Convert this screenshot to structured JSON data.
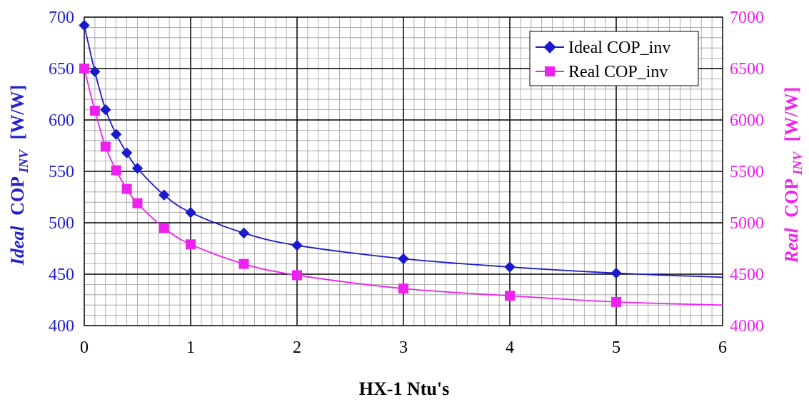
{
  "colors": {
    "ideal": "#1a1acc",
    "real": "#ee22ee",
    "ideal_axis_text": "#2222cc",
    "real_axis_text": "#ee22ee"
  },
  "chart_data": {
    "type": "line",
    "xlabel": "HX-1 Ntu's",
    "ylabel_left": {
      "italic_part": "Ideal",
      "main": "COP",
      "subscript": "INV",
      "unit": "[W/W]"
    },
    "ylabel_right": {
      "italic_part": "Real",
      "main": "COP",
      "subscript": "INV",
      "unit": "[W/W]"
    },
    "xlim": [
      0,
      6
    ],
    "ylim_left": [
      400,
      700
    ],
    "ylim_right": [
      4000,
      7000
    ],
    "x_ticks": [
      "0",
      "1",
      "2",
      "3",
      "4",
      "5",
      "6"
    ],
    "y_left_ticks": [
      "400",
      "450",
      "500",
      "550",
      "600",
      "650",
      "700"
    ],
    "y_right_ticks": [
      "4000",
      "4500",
      "5000",
      "5500",
      "6000",
      "6500",
      "7000"
    ],
    "grid": true,
    "legend_position": "top-right",
    "series": [
      {
        "name": "Ideal COP_inv",
        "axis": "left",
        "marker": "diamond",
        "x": [
          0,
          0.1,
          0.2,
          0.3,
          0.4,
          0.5,
          0.75,
          1,
          1.5,
          2,
          3,
          4,
          5
        ],
        "y": [
          692,
          647,
          610,
          586,
          568,
          553,
          527,
          510,
          490,
          478,
          465,
          457,
          451
        ]
      },
      {
        "name": "Real COP_inv",
        "axis": "right",
        "marker": "square",
        "x": [
          0,
          0.1,
          0.2,
          0.3,
          0.4,
          0.5,
          0.75,
          1,
          1.5,
          2,
          3,
          4,
          5
        ],
        "y": [
          6500,
          6090,
          5740,
          5510,
          5330,
          5190,
          4950,
          4790,
          4600,
          4490,
          4360,
          4290,
          4230
        ]
      }
    ],
    "curves": [
      {
        "axis": "left",
        "x": [
          0,
          0.1,
          0.2,
          0.3,
          0.4,
          0.5,
          0.75,
          1,
          1.5,
          2,
          3,
          4,
          5,
          6
        ],
        "y": [
          692,
          647,
          610,
          586,
          568,
          553,
          527,
          510,
          490,
          478,
          465,
          457,
          451,
          447
        ]
      },
      {
        "axis": "right",
        "x": [
          0,
          0.1,
          0.2,
          0.3,
          0.4,
          0.5,
          0.75,
          1,
          1.5,
          2,
          3,
          4,
          5,
          6
        ],
        "y": [
          6500,
          6090,
          5740,
          5510,
          5330,
          5190,
          4950,
          4790,
          4600,
          4490,
          4360,
          4290,
          4230,
          4200
        ]
      }
    ]
  }
}
